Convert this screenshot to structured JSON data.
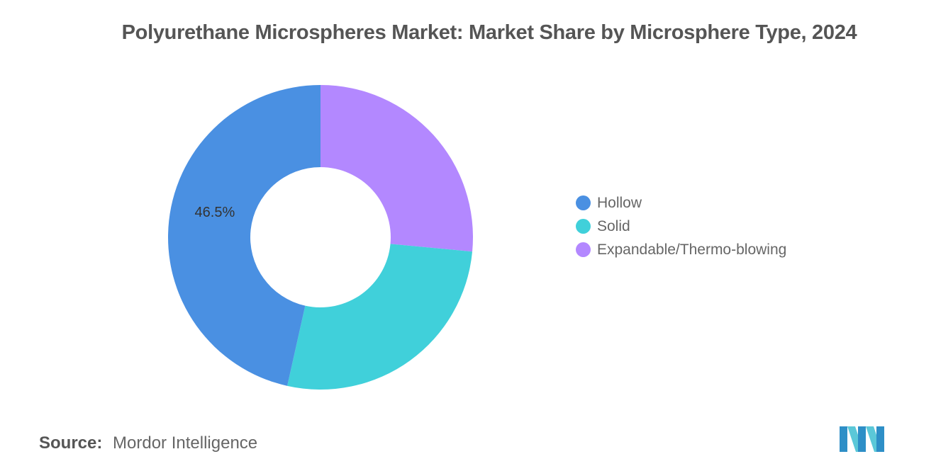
{
  "chart_data": {
    "type": "pie",
    "title": "Polyurethane Microspheres Market: Market Share by Microsphere Type, 2024",
    "categories": [
      "Hollow",
      "Solid",
      "Expandable/Thermo-blowing"
    ],
    "values": [
      46.5,
      27.0,
      26.5
    ],
    "data_labels": [
      "46.5%",
      "",
      ""
    ],
    "colors": [
      "#4A90E2",
      "#40D0DA",
      "#B388FF"
    ],
    "donut": true,
    "legend_position": "right"
  },
  "source": {
    "label": "Source:",
    "value": "Mordor Intelligence"
  },
  "logo": {
    "name": "mordor-intelligence-logo"
  }
}
